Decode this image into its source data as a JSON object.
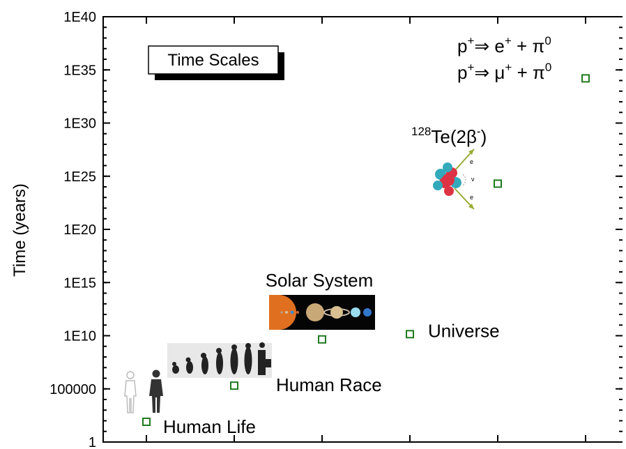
{
  "chart_data": {
    "type": "scatter",
    "y_label": "Time (years)",
    "box_title": "Time Scales",
    "categories": [
      "Human Life",
      "Human Race",
      "Solar System",
      "Universe",
      null,
      null
    ],
    "values": [
      80,
      200000,
      4500000000,
      14000000000,
      2e+24,
      1.6e+34
    ],
    "color": "#1e7a1e",
    "log_y": true,
    "ylim": [
      1,
      1e+40
    ],
    "yticks": [
      1,
      100000,
      {
        "value": 10000000000.0,
        "label": "1E10"
      },
      {
        "value": 1000000000000000.0,
        "label": "1E15"
      },
      {
        "value": 1e+20,
        "label": "1E20"
      },
      {
        "value": 1e+25,
        "label": "1E25"
      },
      {
        "value": 1e+30,
        "label": "1E30"
      },
      {
        "value": 1e+35,
        "label": "1E35"
      },
      {
        "value": 1e+40,
        "label": "1E40"
      }
    ],
    "annotations": [
      [
        {
          "text": "128",
          "sup": true
        },
        {
          "text": "Te(2β"
        },
        {
          "text": "-",
          "sup": true
        },
        {
          "text": ")"
        }
      ],
      [
        {
          "text": "p"
        },
        {
          "text": "+",
          "sup": true
        },
        {
          "text": "⇒ e"
        },
        {
          "text": "+",
          "sup": true
        },
        {
          "text": " + π"
        },
        {
          "text": "0",
          "sup": true
        }
      ],
      [
        {
          "text": "p"
        },
        {
          "text": "+",
          "sup": true
        },
        {
          "text": "⇒ μ"
        },
        {
          "text": "+",
          "sup": true
        },
        {
          "text": " + π"
        },
        {
          "text": "0",
          "sup": true
        }
      ]
    ]
  }
}
